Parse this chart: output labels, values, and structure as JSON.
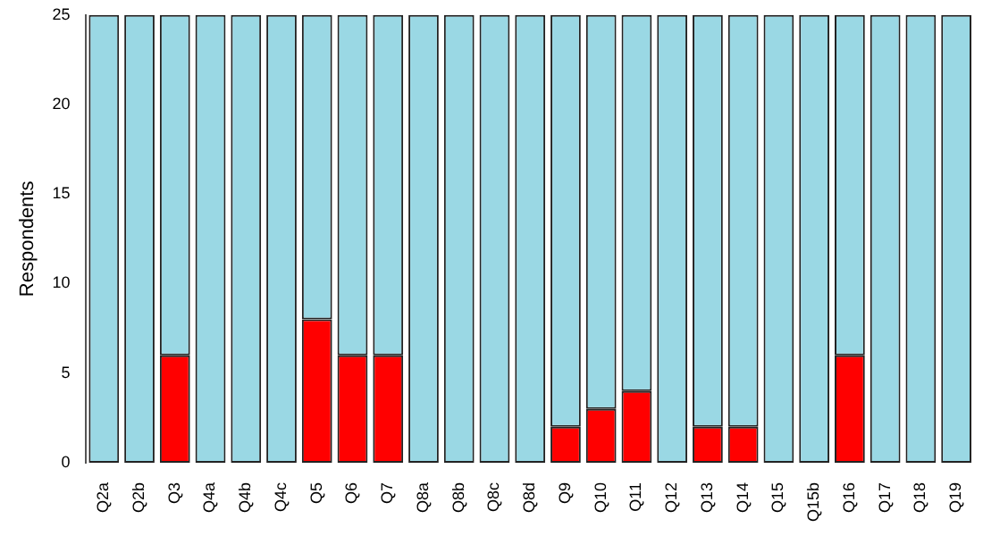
{
  "chart_data": {
    "type": "bar",
    "stacked": true,
    "ylabel": "Respondents",
    "categories": [
      "Q2a",
      "Q2b",
      "Q3",
      "Q4a",
      "Q4b",
      "Q4c",
      "Q5",
      "Q6",
      "Q7",
      "Q8a",
      "Q8b",
      "Q8c",
      "Q8d",
      "Q9",
      "Q10",
      "Q11",
      "Q12",
      "Q13",
      "Q14",
      "Q15",
      "Q15b",
      "Q16",
      "Q17",
      "Q18",
      "Q19"
    ],
    "series": [
      {
        "color": "#ff0000",
        "values": [
          0,
          0,
          6,
          0,
          0,
          0,
          8,
          6,
          6,
          0,
          0,
          0,
          0,
          2,
          3,
          4,
          0,
          2,
          2,
          0,
          0,
          6,
          0,
          0,
          0
        ]
      },
      {
        "color": "#9ad8e4",
        "values": [
          25,
          25,
          19,
          25,
          25,
          25,
          17,
          19,
          19,
          25,
          25,
          25,
          25,
          23,
          22,
          21,
          25,
          23,
          23,
          25,
          25,
          19,
          25,
          25,
          25
        ]
      }
    ],
    "ylim": [
      0,
      25
    ],
    "yticks": [
      0,
      5,
      10,
      15,
      20,
      25
    ],
    "grid": false,
    "legend": false
  }
}
